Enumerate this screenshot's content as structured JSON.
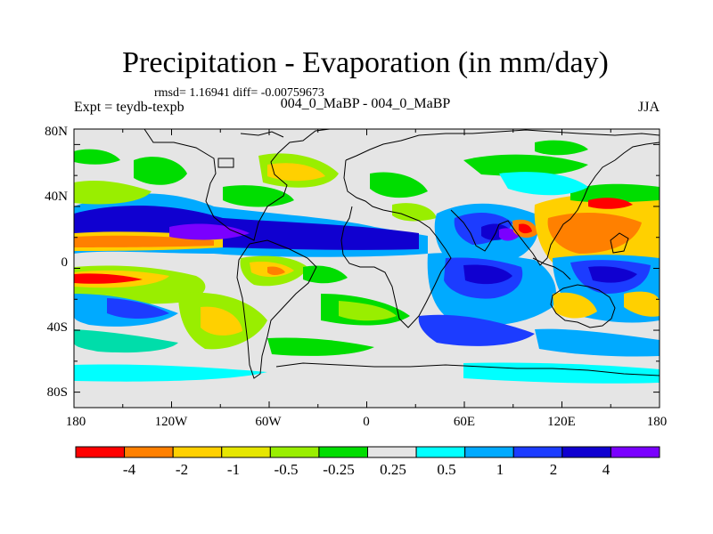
{
  "title": "Precipitation - Evaporation (in mm/day)",
  "stats": "rmsd= 1.16941 diff= -0.00759673",
  "experiment": "Expt = teydb-texpb",
  "comparison": "004_0_MaBP - 004_0_MaBP",
  "season": "JJA",
  "lat_ticks": [
    "80N",
    "40N",
    "0",
    "40S",
    "80S"
  ],
  "lon_ticks": [
    "180",
    "120W",
    "60W",
    "0",
    "60E",
    "120E",
    "180"
  ],
  "colorbar": {
    "colors": [
      "#ff0000",
      "#ff8000",
      "#ffd000",
      "#e6e600",
      "#99ee00",
      "#00dd00",
      "#e5e5e5",
      "#00ffff",
      "#00aaff",
      "#1c3cff",
      "#1000d0",
      "#7a00ff"
    ],
    "labels": [
      "-4",
      "-2",
      "-1",
      "-0.5",
      "-0.25",
      "0.25",
      "0.5",
      "1",
      "2",
      "4"
    ]
  }
}
